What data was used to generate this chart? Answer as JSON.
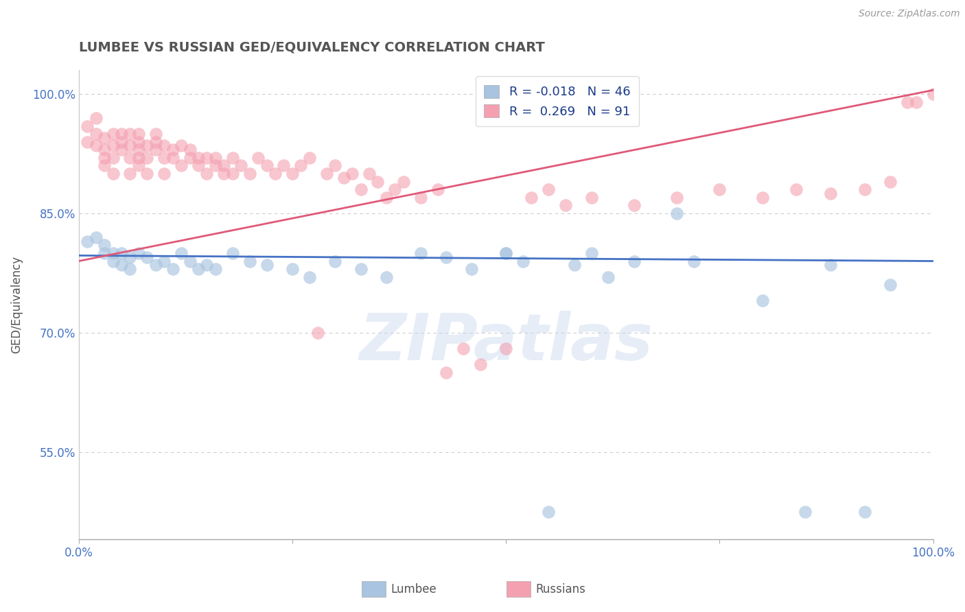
{
  "title": "LUMBEE VS RUSSIAN GED/EQUIVALENCY CORRELATION CHART",
  "source": "Source: ZipAtlas.com",
  "ylabel": "GED/Equivalency",
  "xlim": [
    0.0,
    1.0
  ],
  "ylim": [
    0.44,
    1.03
  ],
  "ytick_positions": [
    0.55,
    0.7,
    0.85,
    1.0
  ],
  "ytick_labels": [
    "55.0%",
    "70.0%",
    "85.0%",
    "100.0%"
  ],
  "lumbee_r": "-0.018",
  "lumbee_n": "46",
  "russian_r": "0.269",
  "russian_n": "91",
  "lumbee_color": "#a8c4e0",
  "russian_color": "#f4a0b0",
  "lumbee_line_color": "#4472c4",
  "russian_line_color": "#e05878",
  "legend_lumbee": "Lumbee",
  "legend_russians": "Russians",
  "lumbee_scatter_x": [
    0.01,
    0.02,
    0.03,
    0.03,
    0.04,
    0.04,
    0.05,
    0.05,
    0.06,
    0.06,
    0.07,
    0.08,
    0.09,
    0.1,
    0.11,
    0.12,
    0.13,
    0.14,
    0.15,
    0.16,
    0.18,
    0.2,
    0.22,
    0.25,
    0.27,
    0.3,
    0.33,
    0.36,
    0.4,
    0.43,
    0.46,
    0.5,
    0.52,
    0.55,
    0.58,
    0.6,
    0.62,
    0.65,
    0.7,
    0.72,
    0.8,
    0.85,
    0.88,
    0.92,
    0.95,
    0.5
  ],
  "lumbee_scatter_y": [
    0.815,
    0.82,
    0.81,
    0.8,
    0.8,
    0.79,
    0.8,
    0.785,
    0.795,
    0.78,
    0.8,
    0.795,
    0.785,
    0.79,
    0.78,
    0.8,
    0.79,
    0.78,
    0.785,
    0.78,
    0.8,
    0.79,
    0.785,
    0.78,
    0.77,
    0.79,
    0.78,
    0.77,
    0.8,
    0.795,
    0.78,
    0.8,
    0.79,
    0.475,
    0.785,
    0.8,
    0.77,
    0.79,
    0.85,
    0.79,
    0.74,
    0.475,
    0.785,
    0.475,
    0.76,
    0.8
  ],
  "russian_scatter_x": [
    0.01,
    0.01,
    0.02,
    0.02,
    0.02,
    0.03,
    0.03,
    0.03,
    0.03,
    0.04,
    0.04,
    0.04,
    0.04,
    0.05,
    0.05,
    0.05,
    0.06,
    0.06,
    0.06,
    0.06,
    0.07,
    0.07,
    0.07,
    0.07,
    0.07,
    0.08,
    0.08,
    0.08,
    0.09,
    0.09,
    0.09,
    0.1,
    0.1,
    0.1,
    0.11,
    0.11,
    0.12,
    0.12,
    0.13,
    0.13,
    0.14,
    0.14,
    0.15,
    0.15,
    0.16,
    0.16,
    0.17,
    0.17,
    0.18,
    0.18,
    0.19,
    0.2,
    0.21,
    0.22,
    0.23,
    0.24,
    0.25,
    0.26,
    0.27,
    0.28,
    0.29,
    0.3,
    0.31,
    0.32,
    0.33,
    0.34,
    0.35,
    0.36,
    0.37,
    0.38,
    0.4,
    0.42,
    0.43,
    0.45,
    0.47,
    0.5,
    0.53,
    0.55,
    0.57,
    0.6,
    0.65,
    0.7,
    0.75,
    0.8,
    0.84,
    0.88,
    0.92,
    0.95,
    0.97,
    0.98,
    1.0
  ],
  "russian_scatter_y": [
    0.94,
    0.96,
    0.935,
    0.95,
    0.97,
    0.93,
    0.945,
    0.92,
    0.91,
    0.935,
    0.95,
    0.92,
    0.9,
    0.93,
    0.94,
    0.95,
    0.92,
    0.935,
    0.95,
    0.9,
    0.93,
    0.95,
    0.92,
    0.91,
    0.94,
    0.935,
    0.92,
    0.9,
    0.94,
    0.93,
    0.95,
    0.92,
    0.935,
    0.9,
    0.93,
    0.92,
    0.935,
    0.91,
    0.93,
    0.92,
    0.91,
    0.92,
    0.9,
    0.92,
    0.91,
    0.92,
    0.9,
    0.91,
    0.92,
    0.9,
    0.91,
    0.9,
    0.92,
    0.91,
    0.9,
    0.91,
    0.9,
    0.91,
    0.92,
    0.7,
    0.9,
    0.91,
    0.895,
    0.9,
    0.88,
    0.9,
    0.89,
    0.87,
    0.88,
    0.89,
    0.87,
    0.88,
    0.65,
    0.68,
    0.66,
    0.68,
    0.87,
    0.88,
    0.86,
    0.87,
    0.86,
    0.87,
    0.88,
    0.87,
    0.88,
    0.875,
    0.88,
    0.89,
    0.99,
    0.99,
    1.0
  ],
  "background_color": "#ffffff",
  "grid_color": "#cccccc",
  "title_color": "#555555",
  "axis_label_color": "#555555",
  "tick_label_color": "#4472c4",
  "watermark_text": "ZIPatlas",
  "watermark_color": "#c8d8ee",
  "watermark_alpha": 0.45
}
